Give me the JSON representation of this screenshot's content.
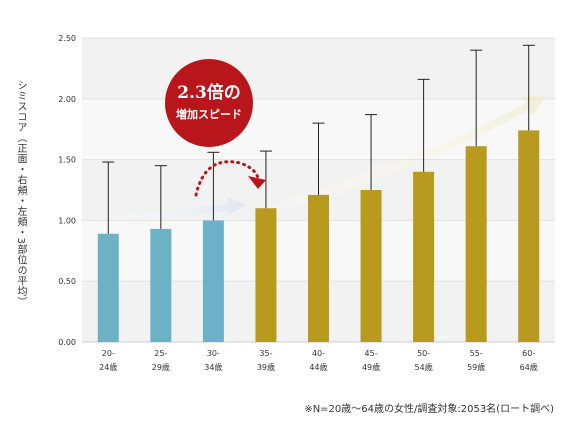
{
  "chart_data": {
    "type": "bar",
    "ylabel": "シミスコア（正面・右頬・左頬・3部位の平均）",
    "ylim": [
      0,
      2.5
    ],
    "yticks": [
      "0.00",
      "0.50",
      "1.00",
      "1.50",
      "2.00",
      "2.50"
    ],
    "categories": [
      {
        "top": "20-",
        "bottom": "24歳"
      },
      {
        "top": "25-",
        "bottom": "29歳"
      },
      {
        "top": "30-",
        "bottom": "34歳"
      },
      {
        "top": "35-",
        "bottom": "39歳"
      },
      {
        "top": "40-",
        "bottom": "44歳"
      },
      {
        "top": "45-",
        "bottom": "49歳"
      },
      {
        "top": "50-",
        "bottom": "54歳"
      },
      {
        "top": "55-",
        "bottom": "59歳"
      },
      {
        "top": "60-",
        "bottom": "64歳"
      }
    ],
    "values": [
      0.89,
      0.93,
      1.0,
      1.1,
      1.21,
      1.25,
      1.4,
      1.61,
      1.74
    ],
    "error_upper": [
      1.48,
      1.45,
      1.56,
      1.57,
      1.8,
      1.87,
      2.16,
      2.4,
      2.44
    ],
    "colors": {
      "young": "#6cb2c7",
      "old": "#b89a1e",
      "callout": "#b8161b",
      "arrow_young": "#dfe7f1",
      "arrow_old": "#f2efd7"
    },
    "annotation": {
      "line1": "2.3倍の",
      "line2": "増加スピード"
    },
    "footnote": "※N=20歳～64歳の女性/調査対象:2053名(ロート調べ)"
  }
}
